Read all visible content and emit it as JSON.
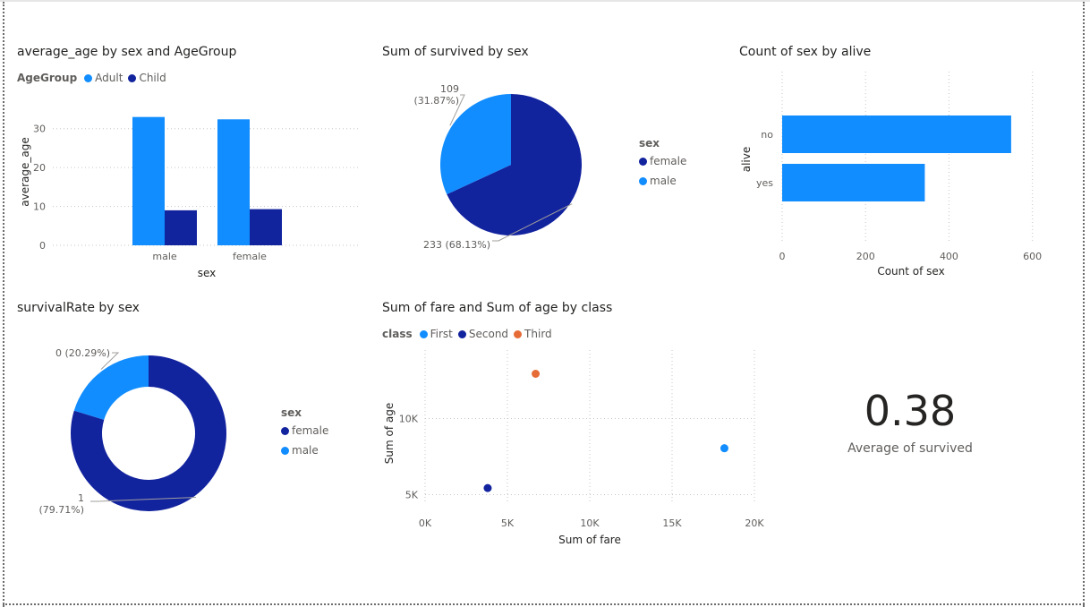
{
  "colors": {
    "light": "#118dff",
    "dark": "#12239e",
    "orange": "#e66c37",
    "grid": "#c8c6c4",
    "axis_text": "#605e5c"
  },
  "chart_data": [
    {
      "type": "bar",
      "title": "average_age by sex and AgeGroup",
      "legend_title": "AgeGroup",
      "xlabel": "sex",
      "ylabel": "average_age",
      "categories": [
        "male",
        "female"
      ],
      "series": [
        {
          "name": "Adult",
          "values": [
            33.0,
            32.4
          ]
        },
        {
          "name": "Child",
          "values": [
            9.0,
            9.3
          ]
        }
      ],
      "ylim": [
        0,
        35
      ],
      "yticks": [
        0,
        10,
        20,
        30
      ],
      "grid": true,
      "legend_position": "top-left"
    },
    {
      "type": "pie",
      "title": "Sum of survived by sex",
      "legend_title": "sex",
      "slices": [
        {
          "name": "female",
          "value": 233,
          "label": "233 (68.13%)"
        },
        {
          "name": "male",
          "value": 109,
          "label": "109\n(31.87%)"
        }
      ],
      "legend_position": "right"
    },
    {
      "type": "bar",
      "orientation": "horizontal",
      "title": "Count of sex by alive",
      "xlabel": "Count of sex",
      "ylabel": "alive",
      "categories": [
        "no",
        "yes"
      ],
      "values": [
        549,
        342
      ],
      "xlim": [
        0,
        620
      ],
      "xticks": [
        0,
        200,
        400,
        600
      ],
      "grid": true
    },
    {
      "type": "pie",
      "donut": true,
      "title": "survivalRate by sex",
      "legend_title": "sex",
      "slices": [
        {
          "name": "female",
          "value": 79.71,
          "label": "1\n(79.71%)"
        },
        {
          "name": "male",
          "value": 20.29,
          "label": "0 (20.29%)"
        }
      ],
      "legend_position": "right"
    },
    {
      "type": "scatter",
      "title": "Sum of fare and Sum of age by class",
      "legend_title": "class",
      "xlabel": "Sum of fare",
      "ylabel": "Sum of age",
      "points": [
        {
          "name": "First",
          "x": 18177,
          "y": 8049
        },
        {
          "name": "Second",
          "x": 3802,
          "y": 5434
        },
        {
          "name": "Third",
          "x": 6715,
          "y": 12941
        }
      ],
      "xlim": [
        0,
        20000
      ],
      "ylim": [
        4500,
        14500
      ],
      "xticks": [
        0,
        5000,
        10000,
        15000,
        20000
      ],
      "xtick_labels": [
        "0K",
        "5K",
        "10K",
        "15K",
        "20K"
      ],
      "yticks": [
        5000,
        10000
      ],
      "ytick_labels": [
        "5K",
        "10K"
      ],
      "grid": true,
      "legend_position": "top-left"
    }
  ],
  "card": {
    "value": "0.38",
    "label": "Average of survived"
  }
}
